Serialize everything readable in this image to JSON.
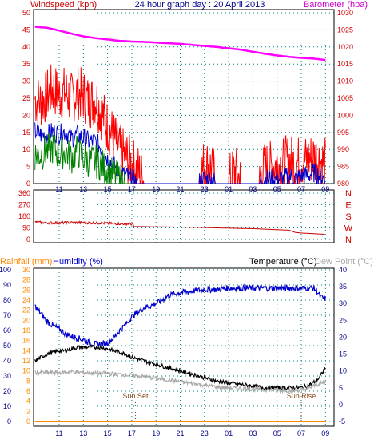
{
  "header": {
    "title": "24 hour graph day : 20 April 2013",
    "left_label": "Windspeed (kph)",
    "right_label": "Barometer (hba)"
  },
  "colors": {
    "gust": "#ff0000",
    "average": "#0000cc",
    "wind_green": "#008000",
    "barometer": "#ff00ff",
    "direction": "#cc0000",
    "rain": "#ff8800",
    "humidity": "#0000cc",
    "temperature": "#000000",
    "dewpoint": "#aaaaaa",
    "axis_red": "#cc0000",
    "axis_blue": "#000088",
    "grid": "#008080"
  },
  "x_ticks": [
    "11",
    "13",
    "15",
    "17",
    "19",
    "21",
    "23",
    "01",
    "03",
    "05",
    "07",
    "09"
  ],
  "chart_data": [
    {
      "type": "line",
      "id": "wind-baro",
      "x_unit": "hours since 09:00 on 19 April",
      "left_axis": {
        "label": "Windspeed (kph)",
        "ticks": [
          0,
          5,
          10,
          15,
          20,
          25,
          30,
          35,
          40,
          45,
          50
        ],
        "ylim": [
          0,
          50
        ]
      },
      "right_axis": {
        "label": "Barometer (hba)",
        "ticks": [
          980,
          985,
          990,
          995,
          1000,
          1005,
          1010,
          1015,
          1020,
          1025,
          1030
        ],
        "ylim": [
          980,
          1030
        ]
      },
      "series": [
        {
          "name": "",
          "style": "gust",
          "x": [
            0,
            0.5,
            1,
            1.5,
            2,
            2.5,
            3,
            3.5,
            4,
            4.5,
            5,
            5.5,
            6,
            6.5,
            7,
            7.5,
            8,
            8.5,
            9,
            9.5,
            10,
            10.5,
            11,
            11.5,
            12,
            12.5,
            13,
            13.5,
            14,
            14.5,
            15,
            15.5,
            16,
            16.5,
            17,
            17.5,
            18,
            18.5,
            19,
            19.5,
            20,
            20.5,
            21,
            21.5,
            22,
            22.5,
            23,
            23.5,
            24
          ],
          "y": [
            24,
            23,
            25,
            27,
            25,
            26,
            24,
            26,
            25,
            23,
            24,
            20,
            16,
            13,
            9,
            7,
            5,
            3,
            0,
            0,
            0,
            0,
            0,
            0,
            0,
            0,
            0,
            0,
            5,
            4,
            0,
            0,
            0,
            3,
            0,
            0,
            0,
            0,
            4,
            4,
            5,
            5,
            6,
            5,
            6,
            6,
            7,
            6,
            5
          ],
          "spread": 8
        },
        {
          "name": "",
          "style": "average",
          "x": [
            0,
            0.5,
            1,
            1.5,
            2,
            2.5,
            3,
            3.5,
            4,
            4.5,
            5,
            5.5,
            6,
            6.5,
            7,
            7.5,
            8,
            8.5,
            9,
            9.5,
            10,
            10.5,
            11,
            11.5,
            12,
            12.5,
            13,
            13.5,
            14,
            14.5,
            15,
            15.5,
            16,
            16.5,
            17,
            17.5,
            18,
            18.5,
            19,
            19.5,
            20,
            20.5,
            21,
            21.5,
            22,
            22.5,
            23,
            23.5,
            24
          ],
          "y": [
            15,
            14,
            14,
            15,
            14,
            15,
            13,
            14,
            13,
            12,
            12,
            10,
            7,
            5,
            3,
            2,
            1,
            0,
            0,
            0,
            0,
            0,
            0,
            0,
            0,
            0,
            0,
            0,
            1,
            1,
            0,
            0,
            0,
            0,
            0,
            0,
            0,
            0,
            1,
            1,
            1,
            1,
            2,
            1,
            2,
            2,
            3,
            2,
            1
          ],
          "spread": 3
        },
        {
          "name": "",
          "style": "wind_green",
          "x": [
            0,
            0.5,
            1,
            1.5,
            2,
            2.5,
            3,
            3.5,
            4,
            4.5,
            5,
            5.5,
            6,
            6.5,
            7,
            7.5,
            8
          ],
          "y": [
            8,
            8,
            9,
            10,
            8,
            9,
            7,
            9,
            7,
            6,
            6,
            5,
            3,
            2,
            1,
            0,
            0
          ],
          "spread": 5
        },
        {
          "name": "",
          "style": "barometer",
          "axis": "right",
          "x": [
            0,
            1,
            2,
            3,
            4,
            5,
            6,
            7,
            8,
            9,
            10,
            11,
            12,
            13,
            14,
            15,
            16,
            17,
            18,
            19,
            20,
            21,
            22,
            23,
            24
          ],
          "y": [
            1025.9,
            1025.6,
            1024.8,
            1023.9,
            1023.1,
            1022.6,
            1022.2,
            1021.8,
            1021.6,
            1021.5,
            1021.3,
            1021.1,
            1020.9,
            1020.6,
            1020.3,
            1020.0,
            1019.6,
            1019.2,
            1018.6,
            1018.0,
            1017.5,
            1017.1,
            1016.8,
            1016.6,
            1016.2
          ]
        }
      ]
    },
    {
      "type": "line",
      "id": "direction",
      "axis": {
        "ticks": [
          0,
          90,
          180,
          270,
          360
        ],
        "ylim": [
          0,
          360
        ]
      },
      "compass": [
        "N",
        "W",
        "S",
        "E",
        "N"
      ],
      "series": [
        {
          "name": "",
          "style": "direction",
          "x": [
            0,
            1,
            2,
            3,
            4,
            5,
            6,
            7,
            8,
            8.2,
            9,
            10,
            11,
            12,
            13,
            14,
            15,
            16,
            17,
            18,
            19,
            20,
            21,
            21.5,
            22,
            23,
            24
          ],
          "y": [
            135,
            130,
            128,
            132,
            130,
            128,
            125,
            122,
            120,
            100,
            100,
            98,
            97,
            96,
            95,
            93,
            90,
            88,
            86,
            84,
            80,
            76,
            72,
            55,
            50,
            45,
            40
          ],
          "spread": 10
        }
      ]
    },
    {
      "type": "line",
      "id": "rain-hum-temp",
      "labels": {
        "rainfall": "Rainfall (mm)",
        "humidity": "Humidity (%)",
        "temperature": "Temperature (°C)",
        "dewpoint": "Dew Point (°C)"
      },
      "rain_axis": {
        "ticks": [
          0,
          2,
          4,
          6,
          8,
          10,
          12,
          14,
          16,
          18,
          20,
          22,
          24,
          26,
          28,
          30
        ],
        "ylim": [
          0,
          30
        ]
      },
      "humidity_axis": {
        "ticks": [
          0,
          10,
          20,
          30,
          40,
          50,
          60,
          70,
          80,
          90,
          100
        ],
        "ylim": [
          0,
          100
        ]
      },
      "temp_axis": {
        "ticks": [
          -5,
          0,
          5,
          10,
          15,
          20,
          25,
          30,
          35,
          40
        ],
        "ylim": [
          -5,
          40
        ]
      },
      "annotations": [
        {
          "text": "Sun Set",
          "x": 8.3
        },
        {
          "text": "Sun Rise",
          "x": 22.0
        }
      ],
      "series": [
        {
          "name": "Rainfall (mm)",
          "style": "rain",
          "axis": "rain",
          "x": [
            0,
            24
          ],
          "y": [
            0,
            0
          ]
        },
        {
          "name": "Humidity (%)",
          "style": "humidity",
          "axis": "humidity",
          "x": [
            0,
            0.5,
            1,
            1.5,
            2,
            2.5,
            3,
            3.5,
            4,
            4.5,
            5,
            5.5,
            6,
            6.5,
            7,
            7.5,
            8,
            8.5,
            9,
            9.5,
            10,
            10.5,
            11,
            11.5,
            12,
            13,
            14,
            15,
            16,
            17,
            18,
            19,
            20,
            21,
            22,
            22.5,
            23,
            23.3,
            23.6,
            24
          ],
          "y": [
            76,
            71,
            66,
            63,
            61,
            58,
            56,
            55,
            54,
            52,
            51,
            51,
            52,
            55,
            60,
            64,
            69,
            72,
            75,
            76,
            78,
            80,
            83,
            84,
            85,
            86,
            87,
            87,
            88,
            88,
            88,
            88,
            88,
            88,
            88,
            88,
            88,
            86,
            82,
            81
          ],
          "spread": 2
        },
        {
          "name": "Temperature (°C)",
          "style": "temperature",
          "axis": "temp",
          "x": [
            0,
            0.5,
            1,
            1.5,
            2,
            2.5,
            3,
            3.5,
            4,
            4.5,
            5,
            5.5,
            6,
            6.5,
            7,
            7.5,
            8,
            8.5,
            9,
            9.5,
            10,
            10.5,
            11,
            11.5,
            12,
            13,
            14,
            15,
            16,
            17,
            18,
            19,
            20,
            21,
            22,
            22.5,
            23,
            23.5,
            24
          ],
          "y": [
            13,
            14,
            15,
            15.5,
            16,
            16,
            16.5,
            17,
            17,
            17,
            17,
            17,
            16.5,
            16,
            15.5,
            15,
            14,
            13.5,
            13,
            12.5,
            12,
            11.5,
            11,
            10.5,
            10,
            9,
            8,
            7,
            6.5,
            6,
            5.5,
            5,
            5,
            5,
            5,
            5.5,
            6.5,
            8,
            11
          ],
          "spread": 0.6
        },
        {
          "name": "Dew Point (°C)",
          "style": "dewpoint",
          "axis": "temp",
          "x": [
            0,
            1,
            2,
            3,
            4,
            5,
            6,
            7,
            8,
            9,
            10,
            11,
            12,
            13,
            14,
            15,
            16,
            17,
            18,
            19,
            20,
            21,
            22,
            22.5,
            23,
            23.5,
            24
          ],
          "y": [
            9.5,
            9.5,
            9.5,
            9.8,
            9.5,
            9.3,
            9.3,
            9,
            8.7,
            8.3,
            7.8,
            7.3,
            6.8,
            6.3,
            5.8,
            5.3,
            5,
            4.8,
            4.6,
            4.4,
            4.3,
            4.2,
            4.3,
            4.7,
            5.5,
            6.2,
            6.8
          ],
          "spread": 0.6
        }
      ]
    }
  ]
}
